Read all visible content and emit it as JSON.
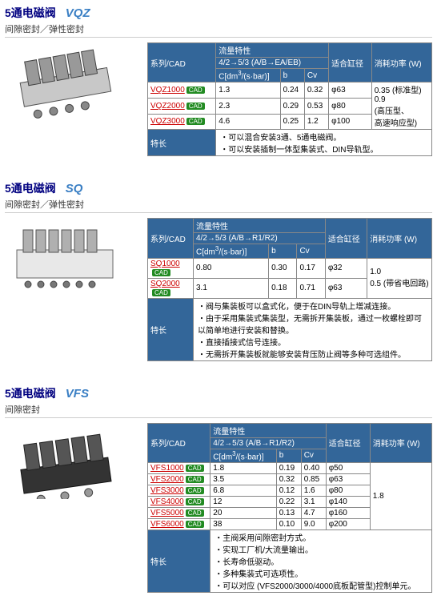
{
  "sections": [
    {
      "title_cn": "5通电磁阀",
      "title_series": "VQZ",
      "series_color": "#3a7fc4",
      "subtitle": "间隙密封／弹性密封",
      "headers": {
        "series_cad": "系列/CAD",
        "flow": "流量特性",
        "flow_sub": "4/2→5/3 (A/B→EA/EB)",
        "cdm": "C[dm³/(s·bar)]",
        "b": "b",
        "cv": "Cv",
        "bore": "适合缸径",
        "power": "消耗功率 (W)"
      },
      "rows": [
        {
          "series": "VQZ1000",
          "cdm": "1.3",
          "b": "0.24",
          "cv": "0.32",
          "bore": "φ63",
          "power": "0.35 (标准型)\n0.9\n(高压型、\n高速响应型)"
        },
        {
          "series": "VQZ2000",
          "cdm": "2.3",
          "b": "0.29",
          "cv": "0.53",
          "bore": "φ80",
          "power": ""
        },
        {
          "series": "VQZ3000",
          "cdm": "4.6",
          "b": "0.25",
          "cv": "1.2",
          "bore": "φ100",
          "power": ""
        }
      ],
      "feature_label": "特长",
      "features": [
        "可以混合安装3通、5通电磁阀。",
        "可以安装插制一体型集装式、DIN导轨型。"
      ]
    },
    {
      "title_cn": "5通电磁阀",
      "title_series": "SQ",
      "series_color": "#3a7fc4",
      "subtitle": "间隙密封／弹性密封",
      "headers": {
        "series_cad": "系列/CAD",
        "flow": "流量特性",
        "flow_sub": "4/2→5/3 (A/B→R1/R2)",
        "cdm": "C[dm³/(s·bar)]",
        "b": "b",
        "cv": "Cv",
        "bore": "适合缸径",
        "power": "消耗功率 (W)"
      },
      "rows": [
        {
          "series": "SQ1000",
          "cdm": "0.80",
          "b": "0.30",
          "cv": "0.17",
          "bore": "φ32",
          "power": "1.0\n0.5 (带省电回路)"
        },
        {
          "series": "SQ2000",
          "cdm": "3.1",
          "b": "0.18",
          "cv": "0.71",
          "bore": "φ63",
          "power": ""
        }
      ],
      "feature_label": "特长",
      "features": [
        "阀与集装板可以盒式化，便于在DIN导轨上增减连接。",
        "由于采用集装式集装型，无需拆开集装板，通过一枚螺栓即可以简单地进行安装和替换。",
        "直接插接式信号连接。",
        "无需拆开集装板就能够安装背压防止阀等多种可选组件。"
      ]
    },
    {
      "title_cn": "5通电磁阀",
      "title_series": "VFS",
      "series_color": "#3a7fc4",
      "subtitle": "间隙密封",
      "headers": {
        "series_cad": "系列/CAD",
        "flow": "流量特性",
        "flow_sub": "4/2→5/3 (A/B→R1/R2)",
        "cdm": "C[dm³/(s·bar)]",
        "b": "b",
        "cv": "Cv",
        "bore": "适合缸径",
        "power": "消耗功率 (W)"
      },
      "rows": [
        {
          "series": "VFS1000",
          "cdm": "1.8",
          "b": "0.19",
          "cv": "0.40",
          "bore": "φ50",
          "power": "1.8"
        },
        {
          "series": "VFS2000",
          "cdm": "3.5",
          "b": "0.32",
          "cv": "0.85",
          "bore": "φ63",
          "power": ""
        },
        {
          "series": "VFS3000",
          "cdm": "6.8",
          "b": "0.12",
          "cv": "1.6",
          "bore": "φ80",
          "power": ""
        },
        {
          "series": "VFS4000",
          "cdm": "12",
          "b": "0.22",
          "cv": "3.1",
          "bore": "φ140",
          "power": ""
        },
        {
          "series": "VFS5000",
          "cdm": "20",
          "b": "0.13",
          "cv": "4.7",
          "bore": "φ160",
          "power": ""
        },
        {
          "series": "VFS6000",
          "cdm": "38",
          "b": "0.10",
          "cv": "9.0",
          "bore": "φ200",
          "power": ""
        }
      ],
      "feature_label": "特长",
      "features": [
        "主阀采用间隙密封方式。",
        "实现工厂机/大流量输出。",
        "长寿命低驱动。",
        "多种集装式可选项性。",
        "可以对应 (VFS2000/3000/4000底板配管型)控制单元。"
      ]
    }
  ],
  "cad_label": "CAD"
}
